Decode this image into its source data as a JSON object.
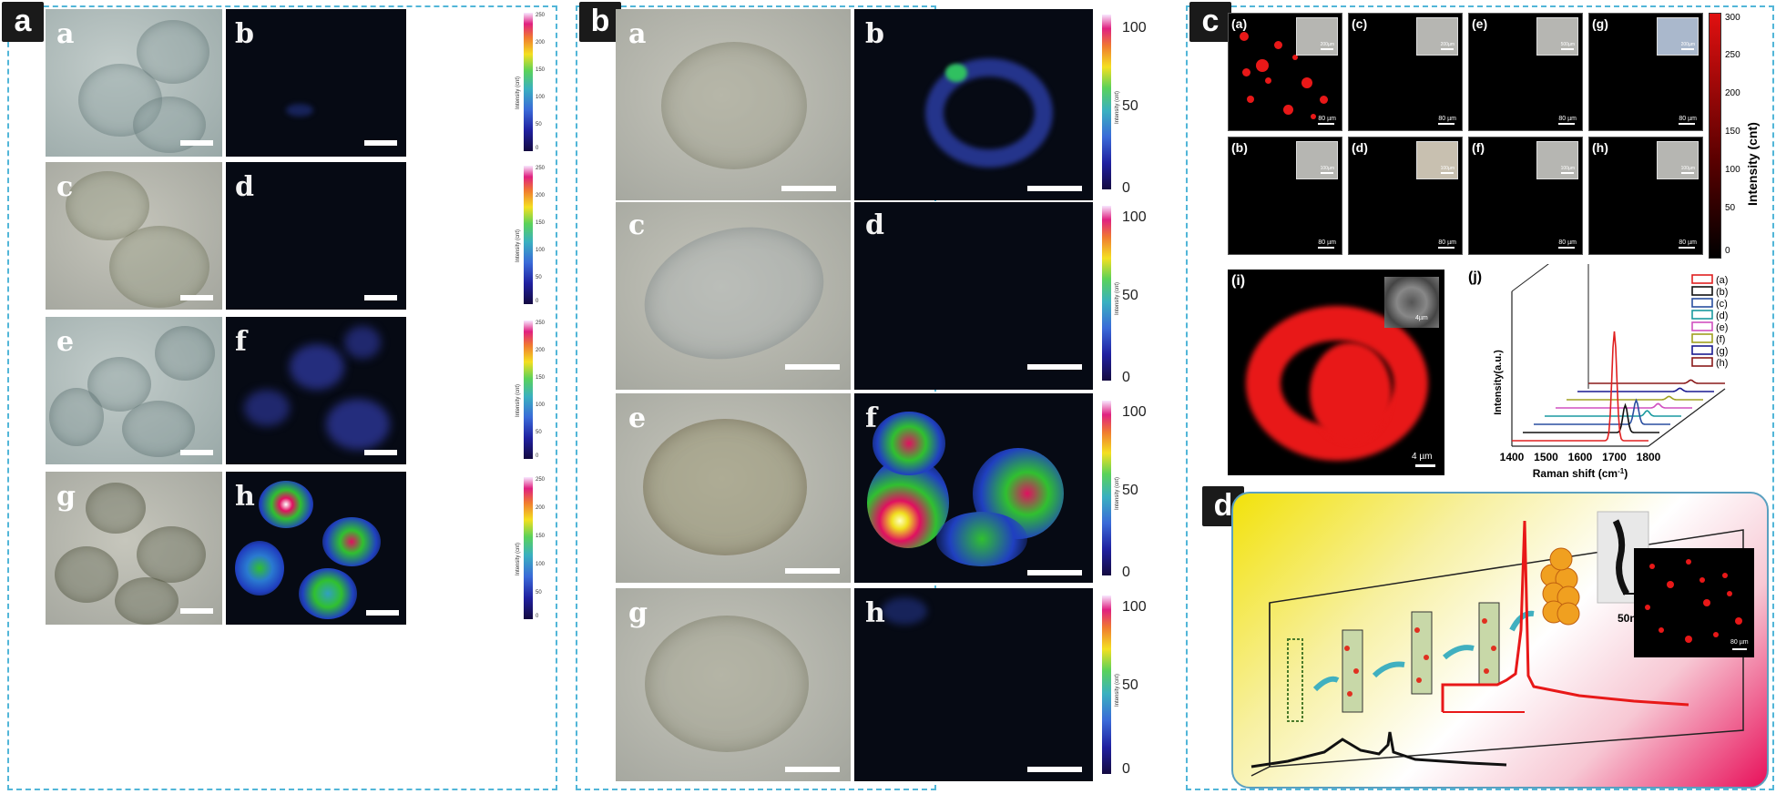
{
  "panels": {
    "a": "a",
    "b": "b",
    "c": "c",
    "d": "d"
  },
  "panel_a": {
    "sublabels": [
      "a",
      "b",
      "c",
      "d",
      "e",
      "f",
      "g",
      "h"
    ],
    "colorbar_title": "Intensity (cnt)",
    "colorbar_ticks": [
      "250",
      "200",
      "150",
      "100",
      "50",
      "0"
    ]
  },
  "panel_b": {
    "sublabels": [
      "a",
      "b",
      "c",
      "d",
      "e",
      "f",
      "g",
      "h"
    ],
    "colorbar_title": "Intensity (cnt)",
    "colorbar_ticks": [
      "100",
      "50",
      "0"
    ]
  },
  "panel_c": {
    "map_labels": [
      "(a)",
      "(c)",
      "(e)",
      "(g)",
      "(b)",
      "(d)",
      "(f)",
      "(h)"
    ],
    "scale_main": "80 µm",
    "inset_scales": [
      "200µm",
      "200µm",
      "500µm",
      "200µm",
      "100µm",
      "100µm",
      "100µm",
      "100µm"
    ],
    "colorbar_title": "Intensity (cnt)",
    "colorbar_ticks": [
      "300",
      "250",
      "200",
      "150",
      "100",
      "50",
      "0"
    ],
    "i_label": "(i)",
    "i_inset_scale": "4µm",
    "i_scale": "4 µm",
    "j_label": "(j)",
    "chart_data": {
      "type": "line",
      "xlabel": "Raman shift (cm",
      "xlabel_sup": "-1",
      "xlabel_close": ")",
      "ylabel": "Intensity(a.u.)",
      "xticks": [
        "1400",
        "1500",
        "1600",
        "1700",
        "1800"
      ],
      "xlim": [
        1400,
        1800
      ],
      "series": [
        {
          "name": "(a)",
          "color": "#e02020",
          "peak": 1.0
        },
        {
          "name": "(b)",
          "color": "#111111",
          "peak": 0.25
        },
        {
          "name": "(c)",
          "color": "#2a4fa0",
          "peak": 0.22
        },
        {
          "name": "(d)",
          "color": "#1a9aa0",
          "peak": 0.05
        },
        {
          "name": "(e)",
          "color": "#d050c0",
          "peak": 0.04
        },
        {
          "name": "(f)",
          "color": "#a0a020",
          "peak": 0.03
        },
        {
          "name": "(g)",
          "color": "#1a1a90",
          "peak": 0.03
        },
        {
          "name": "(h)",
          "color": "#8a1a1a",
          "peak": 0.03
        }
      ],
      "peak_position": 1700
    }
  },
  "panel_d": {
    "tem_scale": "50nm",
    "map_scale": "80 µm"
  }
}
